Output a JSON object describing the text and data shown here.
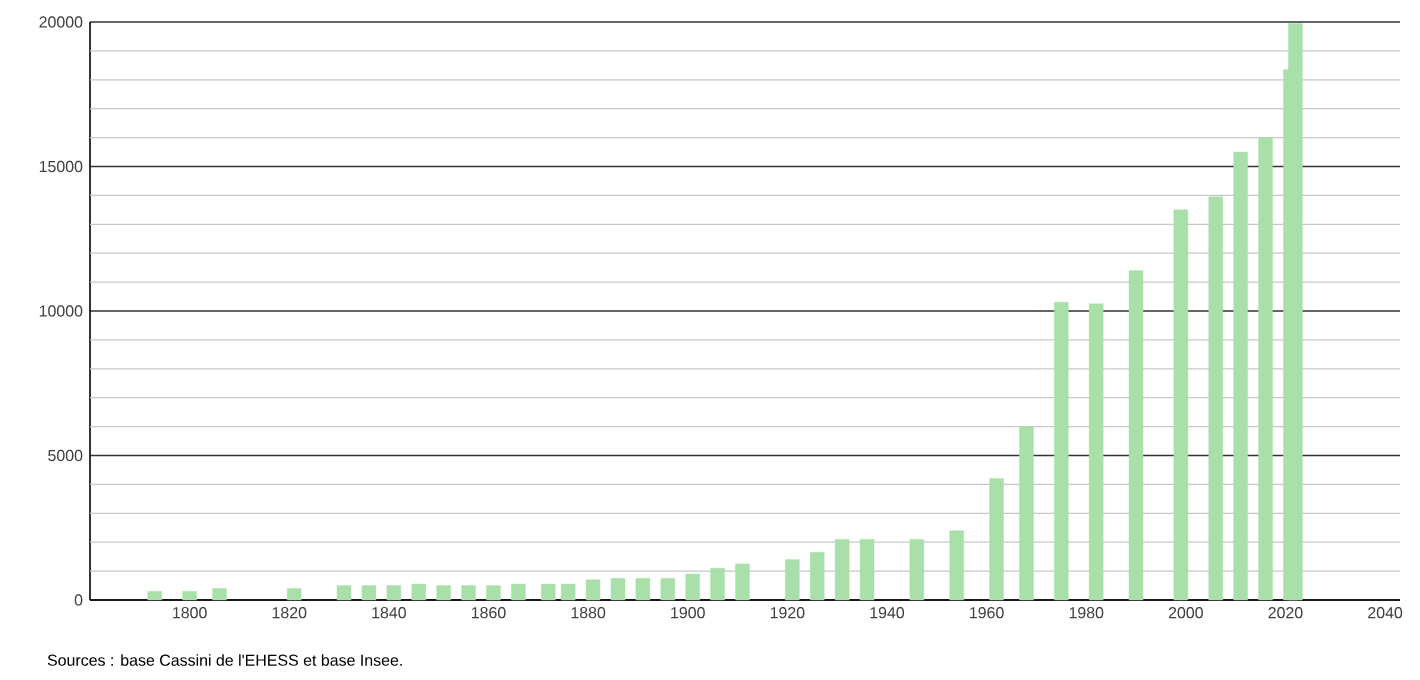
{
  "chart_data": {
    "type": "bar",
    "x": [
      1793,
      1800,
      1806,
      1821,
      1831,
      1836,
      1841,
      1846,
      1851,
      1856,
      1861,
      1866,
      1872,
      1876,
      1881,
      1886,
      1891,
      1896,
      1901,
      1906,
      1911,
      1921,
      1926,
      1931,
      1936,
      1946,
      1954,
      1962,
      1968,
      1975,
      1982,
      1990,
      1999,
      2006,
      2011,
      2016,
      2021,
      2022
    ],
    "values": [
      300,
      300,
      400,
      400,
      500,
      500,
      500,
      550,
      500,
      500,
      500,
      550,
      550,
      550,
      700,
      750,
      750,
      750,
      900,
      1100,
      1250,
      1400,
      1650,
      2100,
      2100,
      2100,
      2400,
      4200,
      6000,
      10300,
      10250,
      11400,
      13500,
      13950,
      15500,
      16000,
      18350,
      19950
    ],
    "color": "#a9dfa9",
    "xlim": [
      1780,
      2043
    ],
    "xticks": [
      1800,
      1820,
      1840,
      1860,
      1880,
      1900,
      1920,
      1940,
      1960,
      1980,
      2000,
      2020,
      2040
    ],
    "ylim": [
      0,
      20000
    ],
    "yticks": [
      0,
      {
        "value": 1000,
        "label": null
      },
      {
        "value": 2000,
        "label": null
      },
      {
        "value": 3000,
        "label": null
      },
      {
        "value": 4000,
        "label": null
      },
      5000,
      {
        "value": 6000,
        "label": null
      },
      {
        "value": 7000,
        "label": null
      },
      {
        "value": 8000,
        "label": null
      },
      {
        "value": 9000,
        "label": null
      },
      10000,
      {
        "value": 11000,
        "label": null
      },
      {
        "value": 12000,
        "label": null
      },
      {
        "value": 13000,
        "label": null
      },
      {
        "value": 14000,
        "label": null
      },
      15000,
      {
        "value": 16000,
        "label": null
      },
      {
        "value": 17000,
        "label": null
      },
      {
        "value": 18000,
        "label": null
      },
      {
        "value": 19000,
        "label": null
      },
      20000
    ],
    "grid": "y",
    "annotations": [
      "Sources : base Cassini de l'EHESS et base Insee."
    ]
  }
}
